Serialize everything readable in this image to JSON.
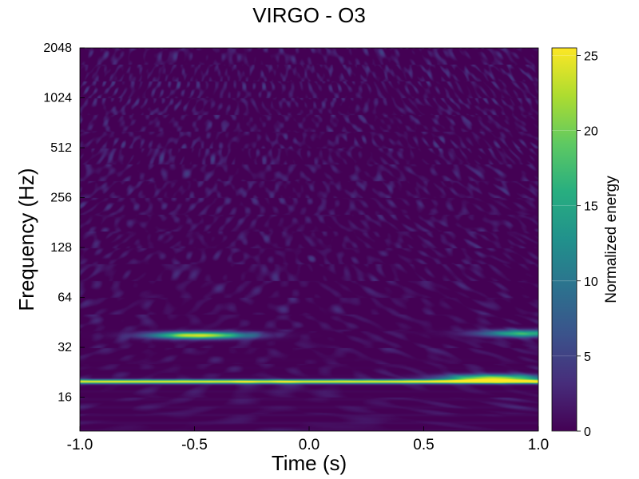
{
  "chart_data": {
    "type": "heatmap",
    "title": "VIRGO - O3",
    "xlabel": "Time (s)",
    "ylabel": "Frequency (Hz)",
    "colorbar_label": "Normalized energy",
    "colormap": "viridis",
    "xlim": [
      -1.0,
      1.0
    ],
    "ylim": [
      10,
      2048
    ],
    "y_scale": "log2",
    "x_ticks": [
      {
        "value": -1.0,
        "label": "-1.0"
      },
      {
        "value": -0.5,
        "label": "-0.5"
      },
      {
        "value": 0.0,
        "label": "0.0"
      },
      {
        "value": 0.5,
        "label": "0.5"
      },
      {
        "value": 1.0,
        "label": "1.0"
      }
    ],
    "y_ticks": [
      {
        "value": 16,
        "label": "16"
      },
      {
        "value": 32,
        "label": "32"
      },
      {
        "value": 64,
        "label": "64"
      },
      {
        "value": 128,
        "label": "128"
      },
      {
        "value": 256,
        "label": "256"
      },
      {
        "value": 512,
        "label": "512"
      },
      {
        "value": 1024,
        "label": "1024"
      },
      {
        "value": 2048,
        "label": "2048"
      }
    ],
    "colorbar_range": [
      0,
      25.5
    ],
    "colorbar_ticks": [
      {
        "value": 0,
        "label": "0"
      },
      {
        "value": 5,
        "label": "5"
      },
      {
        "value": 10,
        "label": "10"
      },
      {
        "value": 15,
        "label": "15"
      },
      {
        "value": 20,
        "label": "20"
      },
      {
        "value": 25,
        "label": "25"
      }
    ],
    "features": [
      {
        "kind": "line",
        "frequency": 20,
        "t_start": -1.0,
        "t_end": 1.0,
        "energy": 25
      },
      {
        "kind": "blob",
        "t": -0.48,
        "frequency": 38,
        "energy": 24
      },
      {
        "kind": "blob",
        "t": 0.95,
        "frequency": 39,
        "energy": 16
      },
      {
        "kind": "blob",
        "t": 0.8,
        "frequency": 21,
        "energy": 22
      }
    ]
  }
}
